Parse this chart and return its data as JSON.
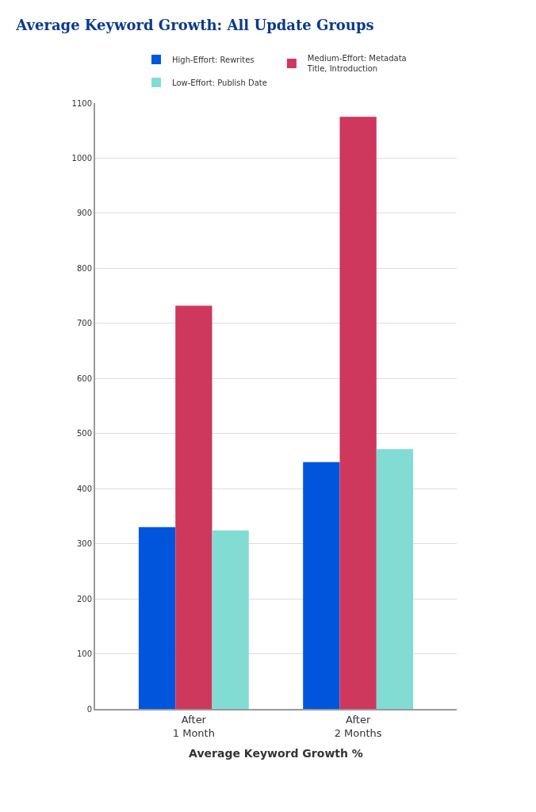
{
  "chart_data": {
    "type": "bar",
    "title": "Average Keyword Growth: All Update Groups",
    "xlabel": "Average Keyword Growth %",
    "categories": [
      "After\n1 Month",
      "After\n2 Months"
    ],
    "series": [
      {
        "name": "High-Effort: Rewrites",
        "color": "#0055dd",
        "values": [
          330,
          448
        ]
      },
      {
        "name": "Medium-Effort: Metadata\nTitle, Introduction",
        "color": "#cd385c",
        "values": [
          732,
          1075
        ]
      },
      {
        "name": "Low-Effort: Publish Date",
        "color": "#82dcd4",
        "values": [
          324,
          472
        ]
      }
    ],
    "ylim": [
      0,
      1100
    ],
    "yticks": [
      0,
      100,
      200,
      300,
      400,
      500,
      600,
      700,
      800,
      900,
      1000,
      1100
    ],
    "grid": "y",
    "legend": "top"
  }
}
